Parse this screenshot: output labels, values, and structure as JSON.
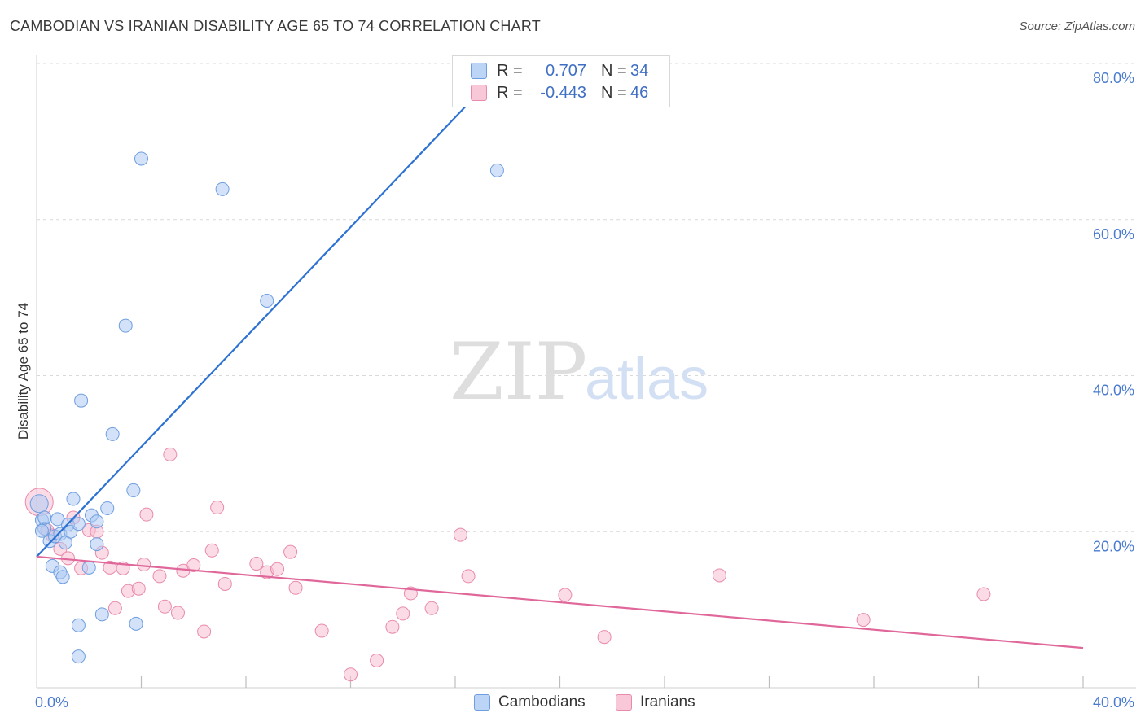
{
  "title": "CAMBODIAN VS IRANIAN DISABILITY AGE 65 TO 74 CORRELATION CHART",
  "source": "Source: ZipAtlas.com",
  "watermark": {
    "zip": "ZIP",
    "atlas": "atlas"
  },
  "legend": {
    "rows": [
      {
        "r_label": "R =",
        "r_value": "0.707",
        "n_label": "N =",
        "n_value": "34"
      },
      {
        "r_label": "R =",
        "r_value": "-0.443",
        "n_label": "N =",
        "n_value": "46"
      }
    ]
  },
  "bottom_legend": {
    "cambodians": "Cambodians",
    "iranians": "Iranians"
  },
  "colors": {
    "cambodian_fill": "#aecbf2",
    "cambodian_stroke": "#6e9ee0",
    "cambodian_line": "#2d72d2",
    "iranian_fill": "#f7bfd1",
    "iranian_stroke": "#e98aab",
    "iranian_line": "#e0679a",
    "tick_label": "#4a7bd0",
    "grid": "#d9d9d9"
  },
  "chart_data": {
    "type": "scatter",
    "title": "CAMBODIAN VS IRANIAN DISABILITY AGE 65 TO 74 CORRELATION CHART",
    "xlabel": "",
    "ylabel": "Disability Age 65 to 74",
    "xlim": [
      0,
      40
    ],
    "ylim": [
      0,
      80
    ],
    "x_tick_labels": [
      "0.0%",
      "40.0%"
    ],
    "y_tick_labels": [
      "20.0%",
      "40.0%",
      "60.0%",
      "80.0%"
    ],
    "y_ticks": [
      20,
      40,
      60,
      80
    ],
    "x_minor_ticks": [
      4,
      8,
      12,
      16,
      20,
      24,
      28,
      32,
      36,
      40
    ],
    "grid": true,
    "legend_position": "top-center",
    "series": [
      {
        "name": "Cambodians",
        "r": 0.707,
        "n": 34,
        "trend": [
          [
            0.0,
            16.8
          ],
          [
            18.1,
            80.5
          ]
        ],
        "points": [
          [
            0.1,
            23.6
          ],
          [
            0.2,
            21.5
          ],
          [
            0.3,
            20.4
          ],
          [
            0.3,
            21.8
          ],
          [
            0.5,
            18.8
          ],
          [
            0.6,
            15.6
          ],
          [
            0.7,
            19.4
          ],
          [
            0.8,
            21.6
          ],
          [
            0.9,
            19.7
          ],
          [
            0.9,
            14.8
          ],
          [
            1.0,
            14.2
          ],
          [
            1.1,
            18.6
          ],
          [
            1.2,
            20.9
          ],
          [
            1.3,
            20.0
          ],
          [
            1.4,
            24.2
          ],
          [
            1.6,
            21.0
          ],
          [
            1.6,
            8.0
          ],
          [
            1.6,
            4.0
          ],
          [
            1.7,
            36.8
          ],
          [
            2.0,
            15.4
          ],
          [
            2.1,
            22.1
          ],
          [
            2.3,
            21.3
          ],
          [
            2.3,
            18.4
          ],
          [
            2.5,
            9.4
          ],
          [
            2.7,
            23.0
          ],
          [
            2.9,
            32.5
          ],
          [
            3.4,
            46.4
          ],
          [
            3.7,
            25.3
          ],
          [
            3.8,
            8.2
          ],
          [
            4.0,
            67.8
          ],
          [
            7.1,
            63.9
          ],
          [
            8.8,
            49.6
          ],
          [
            17.6,
            66.3
          ],
          [
            0.2,
            20.1
          ]
        ]
      },
      {
        "name": "Iranians",
        "r": -0.443,
        "n": 46,
        "trend": [
          [
            0.0,
            16.8
          ],
          [
            40.0,
            5.1
          ]
        ],
        "points": [
          [
            0.1,
            23.8
          ],
          [
            0.4,
            20.2
          ],
          [
            0.6,
            19.5
          ],
          [
            0.9,
            17.8
          ],
          [
            1.2,
            16.6
          ],
          [
            1.4,
            21.8
          ],
          [
            1.7,
            15.3
          ],
          [
            2.0,
            20.2
          ],
          [
            2.3,
            20.0
          ],
          [
            2.5,
            17.3
          ],
          [
            2.8,
            15.4
          ],
          [
            3.0,
            10.2
          ],
          [
            3.3,
            15.3
          ],
          [
            3.5,
            12.4
          ],
          [
            3.9,
            12.7
          ],
          [
            4.1,
            15.8
          ],
          [
            4.2,
            22.2
          ],
          [
            4.7,
            14.3
          ],
          [
            4.9,
            10.4
          ],
          [
            5.1,
            29.9
          ],
          [
            5.4,
            9.6
          ],
          [
            5.6,
            15.0
          ],
          [
            6.0,
            15.7
          ],
          [
            6.4,
            7.2
          ],
          [
            6.7,
            17.6
          ],
          [
            6.9,
            23.1
          ],
          [
            7.2,
            13.3
          ],
          [
            8.4,
            15.9
          ],
          [
            8.8,
            14.8
          ],
          [
            9.2,
            15.2
          ],
          [
            9.7,
            17.4
          ],
          [
            9.9,
            12.8
          ],
          [
            10.9,
            7.3
          ],
          [
            12.0,
            1.7
          ],
          [
            13.0,
            3.5
          ],
          [
            13.6,
            7.8
          ],
          [
            14.0,
            9.5
          ],
          [
            14.3,
            12.1
          ],
          [
            15.1,
            10.2
          ],
          [
            16.2,
            19.6
          ],
          [
            16.5,
            14.3
          ],
          [
            20.2,
            11.9
          ],
          [
            21.7,
            6.5
          ],
          [
            26.1,
            14.4
          ],
          [
            31.6,
            8.7
          ],
          [
            36.2,
            12.0
          ]
        ]
      }
    ]
  }
}
